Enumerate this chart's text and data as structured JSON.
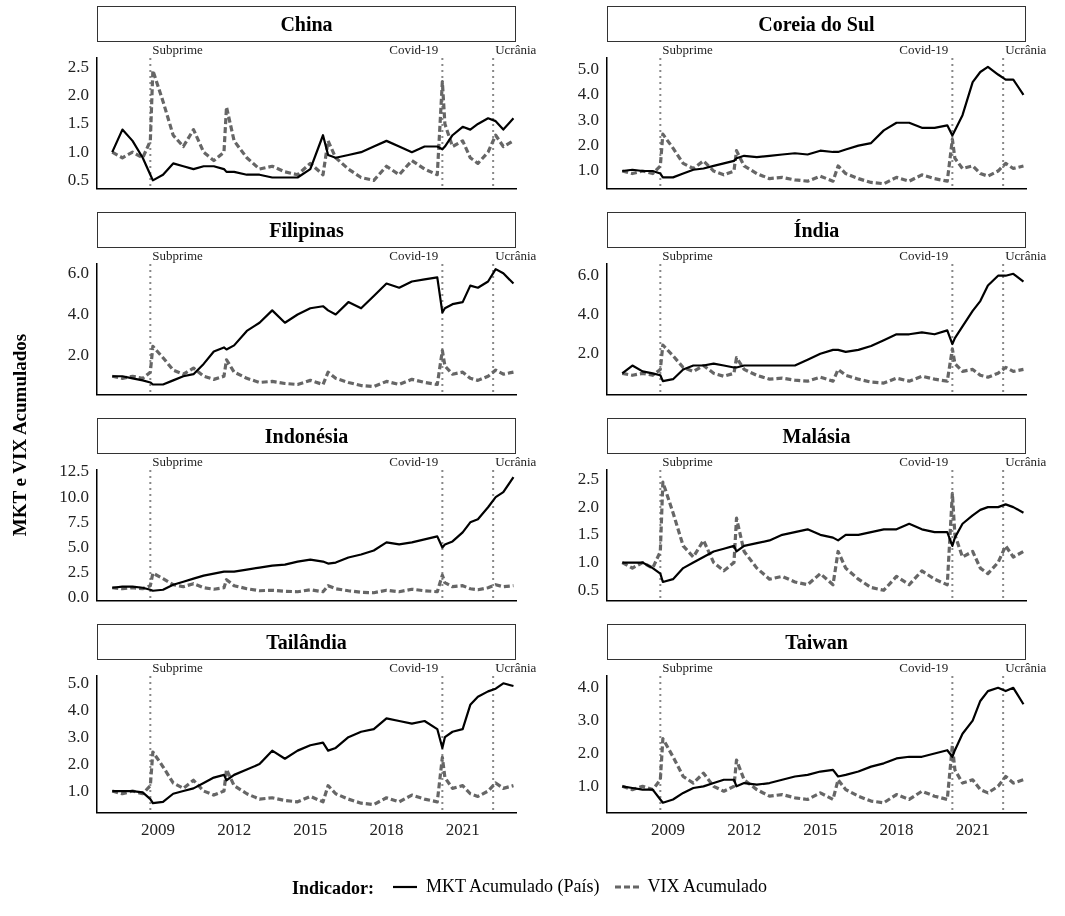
{
  "chart_data": [
    {
      "type": "line",
      "title": "China",
      "annotations": [
        "MKT e VIX Acumulados"
      ],
      "tick_labels": "y",
      "marker": "none",
      "grid": false,
      "xlim": [
        2006.6,
        2023.1
      ],
      "xticks": [
        2009,
        2012,
        2015,
        2018,
        2021
      ],
      "ylim": [
        0.35,
        2.67
      ],
      "yticks": [
        {
          "value": 0.5,
          "label": "0.5"
        },
        {
          "value": 1,
          "label": "1.0"
        },
        {
          "value": 1.5,
          "label": "1.5"
        },
        {
          "value": 2,
          "label": "2.0"
        },
        {
          "value": 2.5,
          "label": "2.5"
        }
      ],
      "x": [
        2007.2,
        2007.6,
        2008.0,
        2008.4,
        2008.7,
        2008.8,
        2009.2,
        2009.6,
        2010.0,
        2010.4,
        2010.8,
        2011.2,
        2011.6,
        2011.7,
        2012.0,
        2012.5,
        2013.0,
        2013.5,
        2014.0,
        2014.5,
        2015.0,
        2015.5,
        2015.7,
        2016.0,
        2016.5,
        2017.0,
        2017.5,
        2018.0,
        2018.5,
        2019.0,
        2019.5,
        2020.0,
        2020.2,
        2020.3,
        2020.6,
        2021.0,
        2021.3,
        2021.6,
        2022.0,
        2022.3,
        2022.6,
        2023.0
      ],
      "ref_lines": [
        {
          "axis": "x",
          "value": 2008.7,
          "label": "Subprime",
          "color": "#888888",
          "line_style": "dotted"
        },
        {
          "axis": "x",
          "value": 2020.2,
          "label": "Covid-19",
          "color": "#888888",
          "line_style": "dotted"
        },
        {
          "axis": "x",
          "value": 2022.2,
          "label": "Ucrânia",
          "color": "#888888",
          "line_style": "dotted"
        }
      ],
      "series": [
        {
          "color": "#000000",
          "line_style": "solid",
          "values": [
            1.0,
            1.4,
            1.2,
            0.9,
            0.6,
            0.5,
            0.6,
            0.8,
            0.75,
            0.7,
            0.75,
            0.75,
            0.7,
            0.65,
            0.65,
            0.6,
            0.6,
            0.55,
            0.55,
            0.55,
            0.7,
            1.3,
            0.95,
            0.9,
            0.95,
            1.0,
            1.1,
            1.2,
            1.1,
            1.0,
            1.1,
            1.1,
            1.05,
            1.1,
            1.3,
            1.45,
            1.4,
            1.5,
            1.6,
            1.55,
            1.4,
            1.6
          ]
        },
        {
          "color": "#666666",
          "line_style": "dashed",
          "values": [
            1.0,
            0.9,
            1.0,
            0.9,
            1.2,
            2.45,
            1.9,
            1.3,
            1.1,
            1.4,
            1.0,
            0.85,
            1.0,
            1.8,
            1.2,
            0.9,
            0.7,
            0.75,
            0.65,
            0.6,
            0.8,
            0.6,
            1.2,
            0.9,
            0.7,
            0.55,
            0.5,
            0.75,
            0.6,
            0.85,
            0.7,
            0.6,
            2.25,
            1.5,
            1.1,
            1.2,
            0.9,
            0.8,
            1.0,
            1.3,
            1.1,
            1.2
          ]
        }
      ]
    },
    {
      "type": "line",
      "title": "Coreia do Sul",
      "tick_labels": "y",
      "marker": "none",
      "grid": false,
      "xlim": [
        2006.6,
        2023.1
      ],
      "xticks": [
        2009,
        2012,
        2015,
        2018,
        2021
      ],
      "ylim": [
        0.3,
        5.45
      ],
      "yticks": [
        {
          "value": 1,
          "label": "1.0"
        },
        {
          "value": 2,
          "label": "2.0"
        },
        {
          "value": 3,
          "label": "3.0"
        },
        {
          "value": 4,
          "label": "4.0"
        },
        {
          "value": 5,
          "label": "5.0"
        }
      ],
      "x": [
        2007.2,
        2007.6,
        2008.0,
        2008.4,
        2008.7,
        2008.8,
        2009.2,
        2009.6,
        2010.0,
        2010.4,
        2010.8,
        2011.2,
        2011.6,
        2011.7,
        2012.0,
        2012.5,
        2013.0,
        2013.5,
        2014.0,
        2014.5,
        2015.0,
        2015.5,
        2015.7,
        2016.0,
        2016.5,
        2017.0,
        2017.5,
        2018.0,
        2018.5,
        2019.0,
        2019.5,
        2020.0,
        2020.2,
        2020.3,
        2020.6,
        2021.0,
        2021.3,
        2021.6,
        2022.0,
        2022.3,
        2022.6,
        2023.0
      ],
      "ref_lines": [
        {
          "axis": "x",
          "value": 2008.7,
          "label": "Subprime",
          "color": "#888888",
          "line_style": "dotted"
        },
        {
          "axis": "x",
          "value": 2020.2,
          "label": "Covid-19",
          "color": "#888888",
          "line_style": "dotted"
        },
        {
          "axis": "x",
          "value": 2022.2,
          "label": "Ucrânia",
          "color": "#888888",
          "line_style": "dotted"
        }
      ],
      "series": [
        {
          "color": "#000000",
          "line_style": "solid",
          "values": [
            1.0,
            1.05,
            1.0,
            1.0,
            0.9,
            0.75,
            0.75,
            0.9,
            1.05,
            1.1,
            1.2,
            1.3,
            1.4,
            1.5,
            1.6,
            1.55,
            1.6,
            1.65,
            1.7,
            1.65,
            1.8,
            1.75,
            1.75,
            1.85,
            2.0,
            2.1,
            2.6,
            2.9,
            2.9,
            2.7,
            2.7,
            2.8,
            2.4,
            2.6,
            3.2,
            4.5,
            4.9,
            5.1,
            4.8,
            4.6,
            4.6,
            4.0
          ]
        },
        {
          "color": "#666666",
          "line_style": "dashed",
          "values": [
            1.0,
            0.9,
            1.0,
            0.9,
            1.2,
            2.45,
            1.9,
            1.3,
            1.1,
            1.4,
            1.0,
            0.85,
            1.0,
            1.8,
            1.2,
            0.9,
            0.7,
            0.75,
            0.65,
            0.6,
            0.8,
            0.6,
            1.2,
            0.9,
            0.7,
            0.55,
            0.5,
            0.75,
            0.6,
            0.85,
            0.7,
            0.6,
            2.25,
            1.5,
            1.1,
            1.2,
            0.9,
            0.8,
            1.0,
            1.3,
            1.1,
            1.2
          ]
        }
      ]
    },
    {
      "type": "line",
      "title": "Filipinas",
      "tick_labels": "y",
      "marker": "none",
      "grid": false,
      "xlim": [
        2006.6,
        2023.1
      ],
      "xticks": [
        2009,
        2012,
        2015,
        2018,
        2021
      ],
      "ylim": [
        0.1,
        6.45
      ],
      "yticks": [
        {
          "value": 2,
          "label": "2.0"
        },
        {
          "value": 4,
          "label": "4.0"
        },
        {
          "value": 6,
          "label": "6.0"
        }
      ],
      "x": [
        2007.2,
        2007.6,
        2008.0,
        2008.4,
        2008.7,
        2008.8,
        2009.2,
        2009.6,
        2010.0,
        2010.4,
        2010.8,
        2011.2,
        2011.6,
        2011.7,
        2012.0,
        2012.5,
        2013.0,
        2013.5,
        2014.0,
        2014.5,
        2015.0,
        2015.5,
        2015.7,
        2016.0,
        2016.5,
        2017.0,
        2017.5,
        2018.0,
        2018.5,
        2019.0,
        2019.5,
        2020.0,
        2020.2,
        2020.3,
        2020.6,
        2021.0,
        2021.3,
        2021.6,
        2022.0,
        2022.3,
        2022.6,
        2023.0
      ],
      "ref_lines": [
        {
          "axis": "x",
          "value": 2008.7,
          "label": "Subprime",
          "color": "#888888",
          "line_style": "dotted"
        },
        {
          "axis": "x",
          "value": 2020.2,
          "label": "Covid-19",
          "color": "#888888",
          "line_style": "dotted"
        },
        {
          "axis": "x",
          "value": 2022.2,
          "label": "Ucrânia",
          "color": "#888888",
          "line_style": "dotted"
        }
      ],
      "series": [
        {
          "color": "#000000",
          "line_style": "solid",
          "values": [
            1.0,
            1.0,
            0.9,
            0.8,
            0.7,
            0.6,
            0.6,
            0.8,
            1.0,
            1.1,
            1.6,
            2.2,
            2.4,
            2.3,
            2.5,
            3.2,
            3.6,
            4.2,
            3.6,
            4.0,
            4.3,
            4.4,
            4.2,
            4.0,
            4.6,
            4.3,
            4.9,
            5.5,
            5.3,
            5.6,
            5.7,
            5.8,
            4.1,
            4.3,
            4.5,
            4.6,
            5.4,
            5.3,
            5.6,
            6.2,
            6.0,
            5.5
          ]
        },
        {
          "color": "#666666",
          "line_style": "dashed",
          "values": [
            1.0,
            0.9,
            1.0,
            0.9,
            1.2,
            2.45,
            1.9,
            1.3,
            1.1,
            1.4,
            1.0,
            0.85,
            1.0,
            1.8,
            1.2,
            0.9,
            0.7,
            0.75,
            0.65,
            0.6,
            0.8,
            0.6,
            1.2,
            0.9,
            0.7,
            0.55,
            0.5,
            0.75,
            0.6,
            0.85,
            0.7,
            0.6,
            2.25,
            1.5,
            1.1,
            1.2,
            0.9,
            0.8,
            1.0,
            1.3,
            1.1,
            1.2
          ]
        }
      ]
    },
    {
      "type": "line",
      "title": "Índia",
      "tick_labels": "y",
      "marker": "none",
      "grid": false,
      "xlim": [
        2006.6,
        2023.1
      ],
      "xticks": [
        2009,
        2012,
        2015,
        2018,
        2021
      ],
      "ylim": [
        -0.1,
        6.6
      ],
      "yticks": [
        {
          "value": 2,
          "label": "2.0"
        },
        {
          "value": 4,
          "label": "4.0"
        },
        {
          "value": 6,
          "label": "6.0"
        }
      ],
      "x": [
        2007.2,
        2007.6,
        2008.0,
        2008.4,
        2008.7,
        2008.8,
        2009.2,
        2009.6,
        2010.0,
        2010.4,
        2010.8,
        2011.2,
        2011.6,
        2011.7,
        2012.0,
        2012.5,
        2013.0,
        2013.5,
        2014.0,
        2014.5,
        2015.0,
        2015.5,
        2015.7,
        2016.0,
        2016.5,
        2017.0,
        2017.5,
        2018.0,
        2018.5,
        2019.0,
        2019.5,
        2020.0,
        2020.2,
        2020.3,
        2020.6,
        2021.0,
        2021.3,
        2021.6,
        2022.0,
        2022.3,
        2022.6,
        2023.0
      ],
      "ref_lines": [
        {
          "axis": "x",
          "value": 2008.7,
          "label": "Subprime",
          "color": "#888888",
          "line_style": "dotted"
        },
        {
          "axis": "x",
          "value": 2020.2,
          "label": "Covid-19",
          "color": "#888888",
          "line_style": "dotted"
        },
        {
          "axis": "x",
          "value": 2022.2,
          "label": "Ucrânia",
          "color": "#888888",
          "line_style": "dotted"
        }
      ],
      "series": [
        {
          "color": "#000000",
          "line_style": "solid",
          "values": [
            1.0,
            1.4,
            1.1,
            1.0,
            0.9,
            0.6,
            0.7,
            1.2,
            1.4,
            1.4,
            1.5,
            1.4,
            1.3,
            1.3,
            1.4,
            1.4,
            1.4,
            1.4,
            1.4,
            1.7,
            2.0,
            2.2,
            2.2,
            2.1,
            2.2,
            2.4,
            2.7,
            3.0,
            3.0,
            3.1,
            3.0,
            3.2,
            2.5,
            2.8,
            3.4,
            4.2,
            4.7,
            5.5,
            6.0,
            6.0,
            6.1,
            5.7
          ]
        },
        {
          "color": "#666666",
          "line_style": "dashed",
          "values": [
            1.0,
            0.9,
            1.0,
            0.9,
            1.2,
            2.45,
            1.9,
            1.3,
            1.1,
            1.4,
            1.0,
            0.85,
            1.0,
            1.8,
            1.2,
            0.9,
            0.7,
            0.75,
            0.65,
            0.6,
            0.8,
            0.6,
            1.2,
            0.9,
            0.7,
            0.55,
            0.5,
            0.75,
            0.6,
            0.85,
            0.7,
            0.6,
            2.25,
            1.5,
            1.1,
            1.2,
            0.9,
            0.8,
            1.0,
            1.3,
            1.1,
            1.2
          ]
        }
      ]
    },
    {
      "type": "line",
      "title": "Indonésia",
      "tick_labels": "y",
      "marker": "none",
      "grid": false,
      "xlim": [
        2006.6,
        2023.1
      ],
      "xticks": [
        2009,
        2012,
        2015,
        2018,
        2021
      ],
      "ylim": [
        -0.3,
        12.7
      ],
      "yticks": [
        {
          "value": 0,
          "label": "0.0"
        },
        {
          "value": 2.5,
          "label": "2.5"
        },
        {
          "value": 5,
          "label": "5.0"
        },
        {
          "value": 7.5,
          "label": "7.5"
        },
        {
          "value": 10,
          "label": "10.0"
        },
        {
          "value": 12.5,
          "label": "12.5"
        }
      ],
      "x": [
        2007.2,
        2007.6,
        2008.0,
        2008.4,
        2008.7,
        2008.8,
        2009.2,
        2009.6,
        2010.0,
        2010.4,
        2010.8,
        2011.2,
        2011.6,
        2011.7,
        2012.0,
        2012.5,
        2013.0,
        2013.5,
        2014.0,
        2014.5,
        2015.0,
        2015.5,
        2015.7,
        2016.0,
        2016.5,
        2017.0,
        2017.5,
        2018.0,
        2018.5,
        2019.0,
        2019.5,
        2020.0,
        2020.2,
        2020.3,
        2020.6,
        2021.0,
        2021.3,
        2021.6,
        2022.0,
        2022.3,
        2022.6,
        2023.0
      ],
      "ref_lines": [
        {
          "axis": "x",
          "value": 2008.7,
          "label": "Subprime",
          "color": "#888888",
          "line_style": "dotted"
        },
        {
          "axis": "x",
          "value": 2020.2,
          "label": "Covid-19",
          "color": "#888888",
          "line_style": "dotted"
        },
        {
          "axis": "x",
          "value": 2022.2,
          "label": "Ucrânia",
          "color": "#888888",
          "line_style": "dotted"
        }
      ],
      "series": [
        {
          "color": "#000000",
          "line_style": "solid",
          "values": [
            1.0,
            1.1,
            1.1,
            1.0,
            0.8,
            0.7,
            0.8,
            1.3,
            1.6,
            1.9,
            2.2,
            2.4,
            2.6,
            2.6,
            2.6,
            2.8,
            3.0,
            3.2,
            3.3,
            3.6,
            3.8,
            3.6,
            3.4,
            3.5,
            4.0,
            4.3,
            4.7,
            5.5,
            5.3,
            5.5,
            5.8,
            6.1,
            5.0,
            5.3,
            5.6,
            6.5,
            7.5,
            7.8,
            9.0,
            10.0,
            10.5,
            12.0
          ]
        },
        {
          "color": "#666666",
          "line_style": "dashed",
          "values": [
            1.0,
            0.9,
            1.0,
            0.9,
            1.2,
            2.45,
            1.9,
            1.3,
            1.1,
            1.4,
            1.0,
            0.85,
            1.0,
            1.8,
            1.2,
            0.9,
            0.7,
            0.75,
            0.65,
            0.6,
            0.8,
            0.6,
            1.2,
            0.9,
            0.7,
            0.55,
            0.5,
            0.75,
            0.6,
            0.85,
            0.7,
            0.6,
            2.25,
            1.5,
            1.1,
            1.2,
            0.9,
            0.8,
            1.0,
            1.3,
            1.1,
            1.2
          ]
        }
      ]
    },
    {
      "type": "line",
      "title": "Malásia",
      "tick_labels": "y",
      "marker": "none",
      "grid": false,
      "xlim": [
        2006.6,
        2023.1
      ],
      "xticks": [
        2009,
        2012,
        2015,
        2018,
        2021
      ],
      "ylim": [
        0.31,
        2.67
      ],
      "yticks": [
        {
          "value": 0.5,
          "label": "0.5"
        },
        {
          "value": 1,
          "label": "1.0"
        },
        {
          "value": 1.5,
          "label": "1.5"
        },
        {
          "value": 2,
          "label": "2.0"
        },
        {
          "value": 2.5,
          "label": "2.5"
        }
      ],
      "x": [
        2007.2,
        2007.6,
        2008.0,
        2008.4,
        2008.7,
        2008.8,
        2009.2,
        2009.6,
        2010.0,
        2010.4,
        2010.8,
        2011.2,
        2011.6,
        2011.7,
        2012.0,
        2012.5,
        2013.0,
        2013.5,
        2014.0,
        2014.5,
        2015.0,
        2015.5,
        2015.7,
        2016.0,
        2016.5,
        2017.0,
        2017.5,
        2018.0,
        2018.5,
        2019.0,
        2019.5,
        2020.0,
        2020.2,
        2020.3,
        2020.6,
        2021.0,
        2021.3,
        2021.6,
        2022.0,
        2022.3,
        2022.6,
        2023.0
      ],
      "ref_lines": [
        {
          "axis": "x",
          "value": 2008.7,
          "label": "Subprime",
          "color": "#888888",
          "line_style": "dotted"
        },
        {
          "axis": "x",
          "value": 2020.2,
          "label": "Covid-19",
          "color": "#888888",
          "line_style": "dotted"
        },
        {
          "axis": "x",
          "value": 2022.2,
          "label": "Ucrânia",
          "color": "#888888",
          "line_style": "dotted"
        }
      ],
      "series": [
        {
          "color": "#000000",
          "line_style": "solid",
          "values": [
            1.0,
            1.0,
            1.0,
            0.9,
            0.8,
            0.65,
            0.7,
            0.9,
            1.0,
            1.1,
            1.2,
            1.25,
            1.3,
            1.2,
            1.3,
            1.35,
            1.4,
            1.5,
            1.55,
            1.6,
            1.5,
            1.45,
            1.4,
            1.5,
            1.5,
            1.55,
            1.6,
            1.6,
            1.7,
            1.6,
            1.55,
            1.55,
            1.3,
            1.45,
            1.7,
            1.85,
            1.95,
            2.0,
            2.0,
            2.05,
            2.0,
            1.9
          ]
        },
        {
          "color": "#666666",
          "line_style": "dashed",
          "values": [
            1.0,
            0.9,
            1.0,
            0.9,
            1.2,
            2.45,
            1.9,
            1.3,
            1.1,
            1.4,
            1.0,
            0.85,
            1.0,
            1.8,
            1.2,
            0.9,
            0.7,
            0.75,
            0.65,
            0.6,
            0.8,
            0.6,
            1.2,
            0.9,
            0.7,
            0.55,
            0.5,
            0.75,
            0.6,
            0.85,
            0.7,
            0.6,
            2.25,
            1.5,
            1.1,
            1.2,
            0.9,
            0.8,
            1.0,
            1.3,
            1.1,
            1.2
          ]
        }
      ]
    },
    {
      "type": "line",
      "title": "Tailândia",
      "marker": "none",
      "grid": false,
      "xlim": [
        2006.6,
        2023.1
      ],
      "xticks": [
        2009,
        2012,
        2015,
        2018,
        2021
      ],
      "ylim": [
        0.2,
        5.27
      ],
      "yticks": [
        {
          "value": 1,
          "label": "1.0"
        },
        {
          "value": 2,
          "label": "2.0"
        },
        {
          "value": 3,
          "label": "3.0"
        },
        {
          "value": 4,
          "label": "4.0"
        },
        {
          "value": 5,
          "label": "5.0"
        }
      ],
      "x": [
        2007.2,
        2007.6,
        2008.0,
        2008.4,
        2008.7,
        2008.8,
        2009.2,
        2009.6,
        2010.0,
        2010.4,
        2010.8,
        2011.2,
        2011.6,
        2011.7,
        2012.0,
        2012.5,
        2013.0,
        2013.5,
        2014.0,
        2014.5,
        2015.0,
        2015.5,
        2015.7,
        2016.0,
        2016.5,
        2017.0,
        2017.5,
        2018.0,
        2018.5,
        2019.0,
        2019.5,
        2020.0,
        2020.2,
        2020.3,
        2020.6,
        2021.0,
        2021.3,
        2021.6,
        2022.0,
        2022.3,
        2022.6,
        2023.0
      ],
      "ref_lines": [
        {
          "axis": "x",
          "value": 2008.7,
          "label": "Subprime",
          "color": "#888888",
          "line_style": "dotted"
        },
        {
          "axis": "x",
          "value": 2020.2,
          "label": "Covid-19",
          "color": "#888888",
          "line_style": "dotted"
        },
        {
          "axis": "x",
          "value": 2022.2,
          "label": "Ucrânia",
          "color": "#888888",
          "line_style": "dotted"
        }
      ],
      "series": [
        {
          "color": "#000000",
          "line_style": "solid",
          "values": [
            1.0,
            1.0,
            1.0,
            0.95,
            0.7,
            0.55,
            0.6,
            0.9,
            1.0,
            1.1,
            1.3,
            1.5,
            1.6,
            1.4,
            1.6,
            1.8,
            2.0,
            2.5,
            2.2,
            2.5,
            2.7,
            2.8,
            2.5,
            2.6,
            3.0,
            3.2,
            3.3,
            3.7,
            3.6,
            3.5,
            3.6,
            3.3,
            2.6,
            3.0,
            3.2,
            3.3,
            4.2,
            4.5,
            4.7,
            4.8,
            5.0,
            4.9
          ]
        },
        {
          "color": "#666666",
          "line_style": "dashed",
          "values": [
            1.0,
            0.9,
            1.0,
            0.9,
            1.2,
            2.45,
            1.9,
            1.3,
            1.1,
            1.4,
            1.0,
            0.85,
            1.0,
            1.8,
            1.2,
            0.9,
            0.7,
            0.75,
            0.65,
            0.6,
            0.8,
            0.6,
            1.2,
            0.9,
            0.7,
            0.55,
            0.5,
            0.75,
            0.6,
            0.85,
            0.7,
            0.6,
            2.25,
            1.5,
            1.1,
            1.2,
            0.9,
            0.8,
            1.0,
            1.3,
            1.1,
            1.2
          ]
        }
      ]
    },
    {
      "type": "line",
      "title": "Taiwan",
      "marker": "none",
      "grid": false,
      "legend": "bottom",
      "legend_title": "Indicador:",
      "xlim": [
        2006.6,
        2023.1
      ],
      "xticks": [
        2009,
        2012,
        2015,
        2018,
        2021
      ],
      "ylim": [
        0.2,
        4.36
      ],
      "yticks": [
        {
          "value": 1,
          "label": "1.0"
        },
        {
          "value": 2,
          "label": "2.0"
        },
        {
          "value": 3,
          "label": "3.0"
        },
        {
          "value": 4,
          "label": "4.0"
        }
      ],
      "x": [
        2007.2,
        2007.6,
        2008.0,
        2008.4,
        2008.7,
        2008.8,
        2009.2,
        2009.6,
        2010.0,
        2010.4,
        2010.8,
        2011.2,
        2011.6,
        2011.7,
        2012.0,
        2012.5,
        2013.0,
        2013.5,
        2014.0,
        2014.5,
        2015.0,
        2015.5,
        2015.7,
        2016.0,
        2016.5,
        2017.0,
        2017.5,
        2018.0,
        2018.5,
        2019.0,
        2019.5,
        2020.0,
        2020.2,
        2020.3,
        2020.6,
        2021.0,
        2021.3,
        2021.6,
        2022.0,
        2022.3,
        2022.6,
        2023.0
      ],
      "ref_lines": [
        {
          "axis": "x",
          "value": 2008.7,
          "label": "Subprime",
          "color": "#888888",
          "line_style": "dotted"
        },
        {
          "axis": "x",
          "value": 2020.2,
          "label": "Covid-19",
          "color": "#888888",
          "line_style": "dotted"
        },
        {
          "axis": "x",
          "value": 2022.2,
          "label": "Ucrânia",
          "color": "#888888",
          "line_style": "dotted"
        }
      ],
      "series": [
        {
          "name": "MKT Acumulado (País)",
          "color": "#000000",
          "line_style": "solid",
          "values": [
            1.0,
            0.95,
            0.9,
            0.9,
            0.6,
            0.5,
            0.6,
            0.8,
            0.95,
            1.0,
            1.1,
            1.2,
            1.2,
            1.0,
            1.1,
            1.05,
            1.1,
            1.2,
            1.3,
            1.35,
            1.45,
            1.5,
            1.3,
            1.35,
            1.45,
            1.6,
            1.7,
            1.85,
            1.9,
            1.9,
            2.0,
            2.1,
            1.9,
            2.1,
            2.6,
            3.0,
            3.6,
            3.9,
            4.0,
            3.9,
            4.0,
            3.5
          ]
        },
        {
          "name": "VIX Acumulado",
          "color": "#666666",
          "line_style": "dashed",
          "values": [
            1.0,
            0.9,
            1.0,
            0.9,
            1.2,
            2.45,
            1.9,
            1.3,
            1.1,
            1.4,
            1.0,
            0.85,
            1.0,
            1.8,
            1.2,
            0.9,
            0.7,
            0.75,
            0.65,
            0.6,
            0.8,
            0.6,
            1.2,
            0.9,
            0.7,
            0.55,
            0.5,
            0.75,
            0.6,
            0.85,
            0.7,
            0.6,
            2.25,
            1.5,
            1.1,
            1.2,
            0.9,
            0.8,
            1.0,
            1.3,
            1.1,
            1.2
          ]
        }
      ]
    }
  ]
}
